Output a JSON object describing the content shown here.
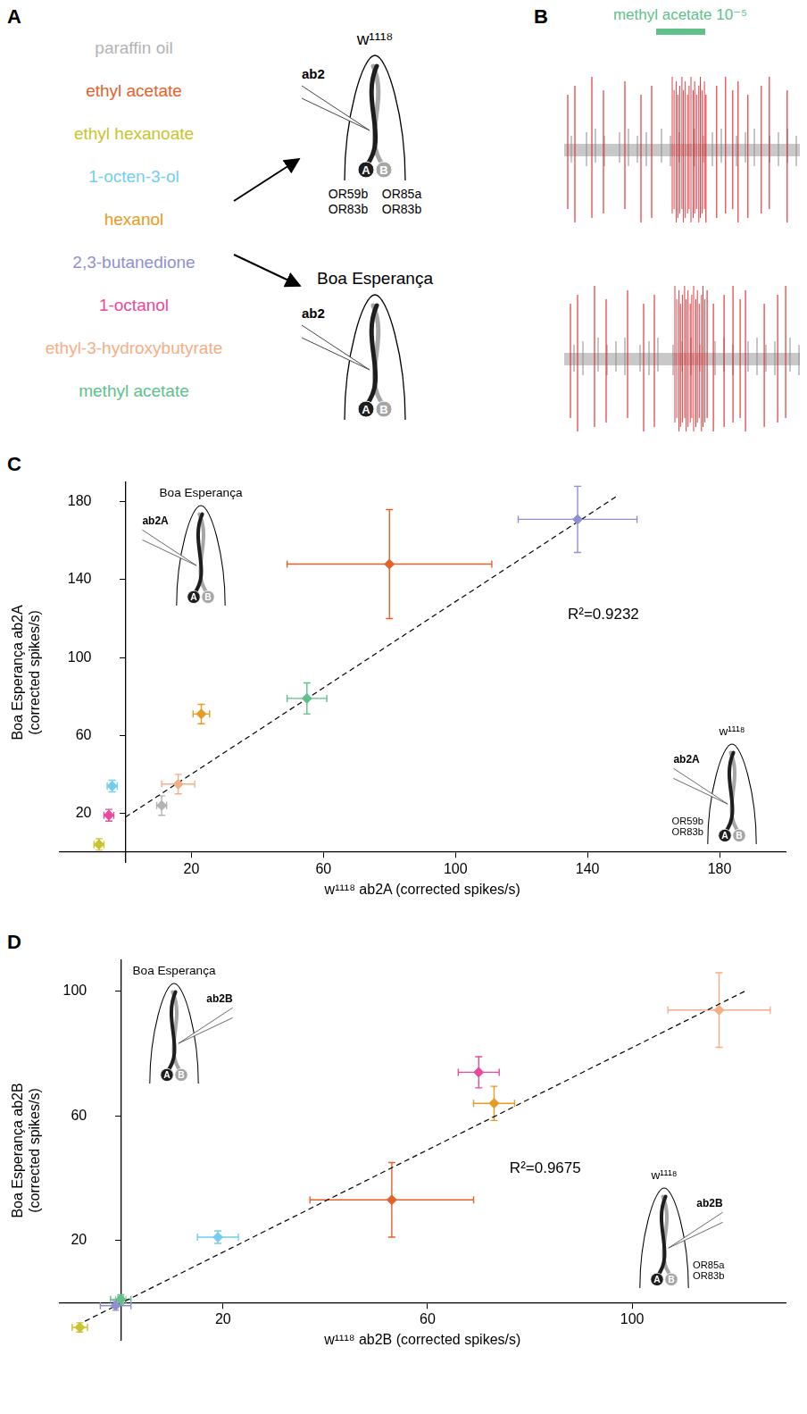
{
  "panel_A": {
    "letter": "A",
    "odorants": [
      {
        "name": "paraffin oil",
        "color": "#b3b3b3"
      },
      {
        "name": "ethyl acetate",
        "color": "#e2622b"
      },
      {
        "name": "ethyl hexanoate",
        "color": "#c9c32e"
      },
      {
        "name": "1-octen-3-ol",
        "color": "#73cdf0"
      },
      {
        "name": "hexanol",
        "color": "#e69b22"
      },
      {
        "name": "2,3-butanedione",
        "color": "#8f8fd1"
      },
      {
        "name": "1-octanol",
        "color": "#e9489c"
      },
      {
        "name": "ethyl-3-hydroxybutyrate",
        "color": "#f3ae85"
      },
      {
        "name": "methyl acetate",
        "color": "#60c08a"
      }
    ],
    "sensilla": [
      {
        "strain": "w¹¹¹⁸",
        "electrode": "ab2",
        "neurons": [
          "A",
          "B"
        ],
        "receptors_A": [
          "OR59b",
          "OR83b"
        ],
        "receptors_B": [
          "OR85a",
          "OR83b"
        ]
      },
      {
        "strain": "Boa Esperança",
        "electrode": "ab2",
        "neurons": [
          "A",
          "B"
        ]
      }
    ]
  },
  "panel_B": {
    "letter": "B",
    "stimulus": "methyl acetate 10⁻⁵",
    "color": "#60c08a"
  },
  "chart_data": [
    {
      "letter": "C",
      "type": "scatter",
      "x_label": "w¹¹¹⁸ ab2A (corrected spikes/s)",
      "y_label": "Boa Esperança ab2A (corrected spikes/s)",
      "xlim": [
        -20,
        200
      ],
      "ylim": [
        -5,
        190
      ],
      "xticks": [
        20,
        60,
        100,
        140,
        180
      ],
      "yticks": [
        20,
        60,
        100,
        140,
        180
      ],
      "grid": false,
      "marker": "diamond",
      "annotation": "R²=0.9232",
      "fit_line": {
        "x": [
          0,
          149
        ],
        "y": [
          18,
          183
        ],
        "line_style": "dashed"
      },
      "series": [
        {
          "name": "paraffin oil",
          "color": "#b3b3b3",
          "x": [
            11
          ],
          "y": [
            24
          ],
          "x_error": [
            1.5
          ],
          "y_error": [
            5
          ]
        },
        {
          "name": "ethyl acetate",
          "color": "#e2622b",
          "x": [
            80
          ],
          "y": [
            148
          ],
          "x_error": [
            31
          ],
          "y_error": [
            28
          ]
        },
        {
          "name": "ethyl hexanoate",
          "color": "#c9c32e",
          "x": [
            -8
          ],
          "y": [
            4
          ],
          "x_error": [
            1.5
          ],
          "y_error": [
            3
          ]
        },
        {
          "name": "1-octen-3-ol",
          "color": "#73cdf0",
          "x": [
            -4
          ],
          "y": [
            34
          ],
          "x_error": [
            1.5
          ],
          "y_error": [
            3
          ]
        },
        {
          "name": "hexanol",
          "color": "#e69b22",
          "x": [
            23
          ],
          "y": [
            71
          ],
          "x_error": [
            2.5
          ],
          "y_error": [
            5
          ]
        },
        {
          "name": "2,3-butanedione",
          "color": "#8f8fd1",
          "x": [
            137
          ],
          "y": [
            171
          ],
          "x_error": [
            18
          ],
          "y_error": [
            17
          ]
        },
        {
          "name": "1-octanol",
          "color": "#e9489c",
          "x": [
            -5
          ],
          "y": [
            19
          ],
          "x_error": [
            1.5
          ],
          "y_error": [
            3
          ]
        },
        {
          "name": "ethyl-3-hydroxybutyrate",
          "color": "#f3ae85",
          "x": [
            16
          ],
          "y": [
            35
          ],
          "x_error": [
            5
          ],
          "y_error": [
            5
          ]
        },
        {
          "name": "methyl acetate",
          "color": "#60c08a",
          "x": [
            55
          ],
          "y": [
            79
          ],
          "x_error": [
            6
          ],
          "y_error": [
            8
          ]
        }
      ],
      "insets": [
        {
          "title": "Boa Esperança",
          "electrode": "ab2A",
          "neurons": [
            "A",
            "B"
          ]
        },
        {
          "title": "w¹¹¹⁸",
          "electrode": "ab2A",
          "neurons": [
            "A",
            "B"
          ],
          "receptors": [
            "OR59b",
            "OR83b"
          ]
        }
      ]
    },
    {
      "letter": "D",
      "type": "scatter",
      "x_label": "w¹¹¹⁸ ab2B (corrected spikes/s)",
      "y_label": "Boa Esperança ab2B (corrected spikes/s)",
      "xlim": [
        -12,
        130
      ],
      "ylim": [
        -12,
        110
      ],
      "xticks": [
        20,
        60,
        100
      ],
      "yticks": [
        20,
        60,
        100
      ],
      "grid": false,
      "marker": "diamond",
      "annotation": "R²=0.9675",
      "fit_line": {
        "x": [
          -7,
          122
        ],
        "y": [
          -6,
          100
        ],
        "line_style": "dashed"
      },
      "series": [
        {
          "name": "paraffin oil",
          "color": "#b3b3b3",
          "x": [
            0
          ],
          "y": [
            1
          ],
          "x_error": [
            1
          ],
          "y_error": [
            1
          ]
        },
        {
          "name": "ethyl acetate",
          "color": "#e2622b",
          "x": [
            53
          ],
          "y": [
            33
          ],
          "x_error": [
            16
          ],
          "y_error": [
            12
          ]
        },
        {
          "name": "ethyl hexanoate",
          "color": "#c9c32e",
          "x": [
            -8
          ],
          "y": [
            -8
          ],
          "x_error": [
            1.5
          ],
          "y_error": [
            1.5
          ]
        },
        {
          "name": "1-octen-3-ol",
          "color": "#73cdf0",
          "x": [
            19
          ],
          "y": [
            21
          ],
          "x_error": [
            4
          ],
          "y_error": [
            2
          ]
        },
        {
          "name": "hexanol",
          "color": "#e69b22",
          "x": [
            73
          ],
          "y": [
            64
          ],
          "x_error": [
            4
          ],
          "y_error": [
            5.5
          ]
        },
        {
          "name": "2,3-butanedione",
          "color": "#8f8fd1",
          "x": [
            -1
          ],
          "y": [
            -1
          ],
          "x_error": [
            3
          ],
          "y_error": [
            1.5
          ]
        },
        {
          "name": "1-octanol",
          "color": "#e9489c",
          "x": [
            70
          ],
          "y": [
            74
          ],
          "x_error": [
            4
          ],
          "y_error": [
            5
          ]
        },
        {
          "name": "ethyl-3-hydroxybutyrate",
          "color": "#f3ae85",
          "x": [
            117
          ],
          "y": [
            94
          ],
          "x_error": [
            10
          ],
          "y_error": [
            12
          ]
        },
        {
          "name": "methyl acetate",
          "color": "#60c08a",
          "x": [
            0
          ],
          "y": [
            1
          ],
          "x_error": [
            2
          ],
          "y_error": [
            1.5
          ]
        }
      ],
      "insets": [
        {
          "title": "Boa Esperança",
          "electrode": "ab2B",
          "neurons": [
            "A",
            "B"
          ]
        },
        {
          "title": "w¹¹¹⁸",
          "electrode": "ab2B",
          "neurons": [
            "A",
            "B"
          ],
          "receptors": [
            "OR85a",
            "OR83b"
          ]
        }
      ]
    }
  ]
}
